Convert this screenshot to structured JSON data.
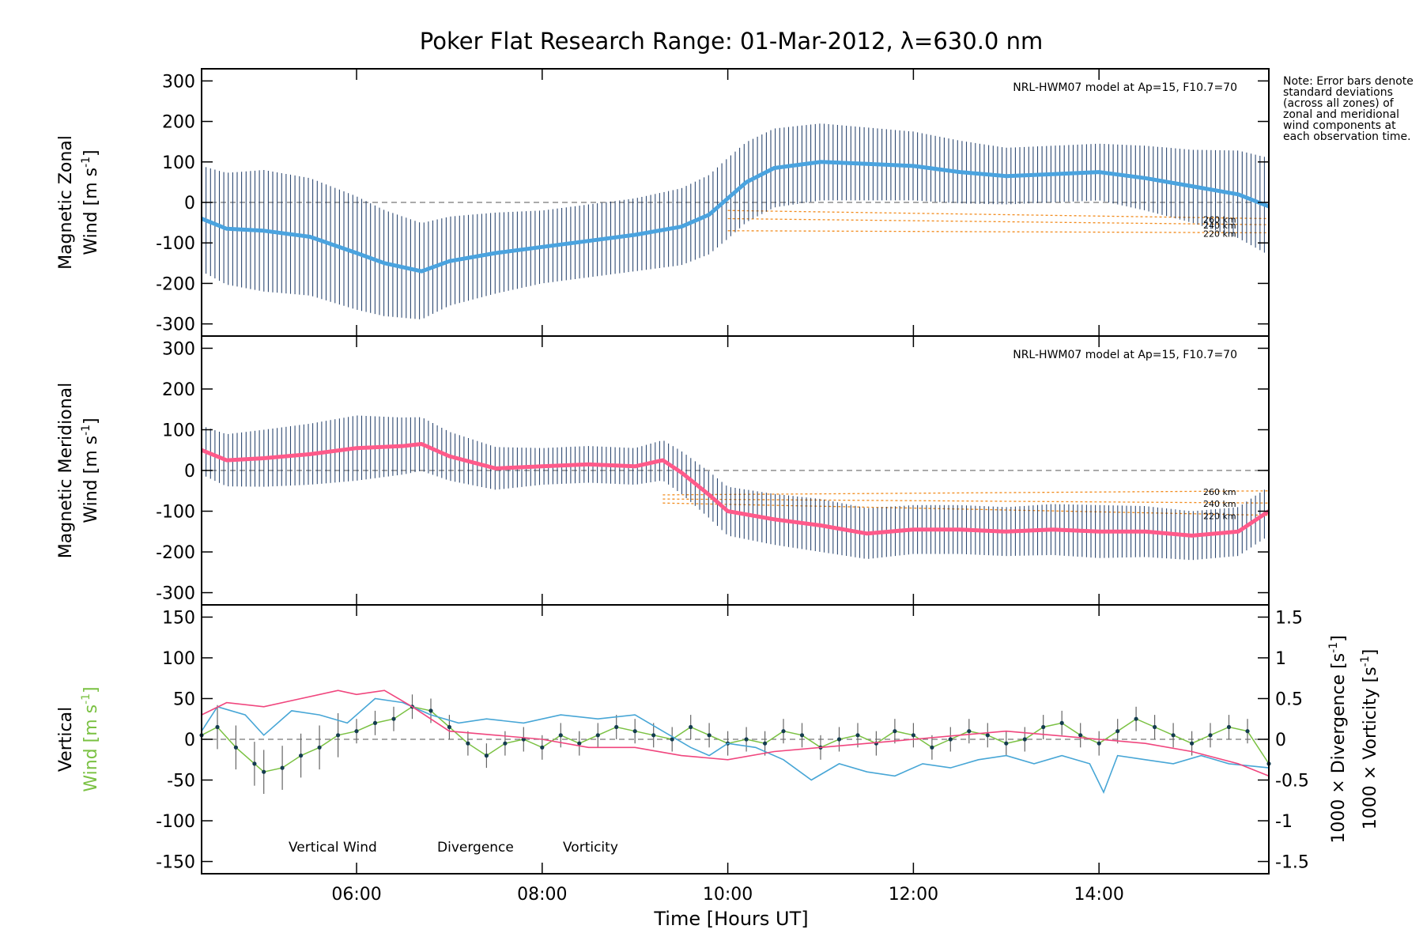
{
  "title": "Poker Flat Research Range: 01-Mar-2012, λ=630.0 nm",
  "note": "Note: Error bars denote standard deviations (across all zones) of zonal and meridional wind components at each observation time.",
  "colors": {
    "zonal_mean": "#4aa3df",
    "meridional_mean": "#ff5a8a",
    "error_bar": "#0a2a5a",
    "model": "#f28c1e",
    "outlier": "#b4a9e0",
    "vertical": "#7ac142",
    "divergence": "#47a6d6",
    "vorticity": "#f0467e",
    "vertical_dot": "#143c4f"
  },
  "xaxis": {
    "label": "Time [Hours UT]",
    "range_hours": [
      4.33,
      15.83
    ],
    "ticks": [
      {
        "h": 6,
        "label": "06:00"
      },
      {
        "h": 8,
        "label": "08:00"
      },
      {
        "h": 10,
        "label": "10:00"
      },
      {
        "h": 12,
        "label": "12:00"
      },
      {
        "h": 14,
        "label": "14:00"
      }
    ]
  },
  "chart_data": [
    {
      "type": "line",
      "id": "zonal",
      "ylabel_line1": "Magnetic Zonal",
      "ylabel_line2": "Wind [m s",
      "ylabel_sup": "-1",
      "ylabel_close": "]",
      "ylim": [
        -330,
        330
      ],
      "yticks": [
        300,
        200,
        100,
        0,
        -100,
        -200,
        -300
      ],
      "model_label": "NRL-HWM07 model at Ap=15, F10.7=70",
      "model_altitudes": [
        "260 km",
        "240 km",
        "220 km"
      ],
      "mean_wind": {
        "x": [
          4.33,
          4.6,
          5.0,
          5.5,
          6.0,
          6.3,
          6.7,
          7.0,
          7.5,
          8.0,
          8.5,
          9.0,
          9.5,
          9.8,
          10.0,
          10.2,
          10.5,
          11.0,
          11.5,
          12.0,
          12.5,
          13.0,
          13.5,
          14.0,
          14.5,
          15.0,
          15.5,
          15.83
        ],
        "y": [
          -40,
          -65,
          -70,
          -85,
          -125,
          -150,
          -170,
          -145,
          -125,
          -110,
          -95,
          -80,
          -60,
          -30,
          10,
          50,
          85,
          100,
          95,
          90,
          75,
          65,
          70,
          75,
          60,
          40,
          20,
          -10
        ]
      },
      "std_dev": {
        "x": [
          4.33,
          5.0,
          6.0,
          7.0,
          8.0,
          9.0,
          10.0,
          11.0,
          12.0,
          13.0,
          14.0,
          15.0,
          15.83
        ],
        "y": [
          130,
          150,
          140,
          110,
          90,
          90,
          100,
          95,
          85,
          70,
          70,
          90,
          120
        ]
      },
      "model": [
        {
          "name": "260 km",
          "x": [
            10.0,
            15.83
          ],
          "y": [
            -20,
            -40
          ]
        },
        {
          "name": "240 km",
          "x": [
            10.0,
            15.83
          ],
          "y": [
            -40,
            -55
          ]
        },
        {
          "name": "220 km",
          "x": [
            10.0,
            15.83
          ],
          "y": [
            -70,
            -75
          ]
        }
      ]
    },
    {
      "type": "line",
      "id": "meridional",
      "ylabel_line1": "Magnetic Meridional",
      "ylabel_line2": "Wind [m s",
      "ylabel_sup": "-1",
      "ylabel_close": "]",
      "ylim": [
        -330,
        330
      ],
      "yticks": [
        300,
        200,
        100,
        0,
        -100,
        -200,
        -300
      ],
      "model_label": "NRL-HWM07 model at Ap=15, F10.7=70",
      "model_altitudes": [
        "260 km",
        "240 km",
        "220 km"
      ],
      "mean_wind": {
        "x": [
          4.33,
          4.6,
          5.0,
          5.5,
          6.0,
          6.5,
          6.7,
          7.0,
          7.5,
          8.0,
          8.5,
          9.0,
          9.3,
          9.5,
          9.8,
          10.0,
          10.5,
          11.0,
          11.5,
          12.0,
          12.5,
          13.0,
          13.5,
          14.0,
          14.5,
          15.0,
          15.5,
          15.83
        ],
        "y": [
          50,
          25,
          30,
          40,
          55,
          60,
          65,
          35,
          5,
          10,
          15,
          10,
          25,
          -5,
          -60,
          -100,
          -120,
          -135,
          -155,
          -145,
          -145,
          -150,
          -145,
          -150,
          -150,
          -160,
          -150,
          -100
        ]
      },
      "std_dev": {
        "x": [
          4.33,
          5.0,
          6.0,
          7.0,
          8.0,
          9.0,
          10.0,
          11.0,
          12.0,
          13.0,
          14.0,
          15.0,
          15.83
        ],
        "y": [
          60,
          70,
          80,
          60,
          45,
          45,
          60,
          65,
          60,
          60,
          65,
          60,
          60
        ]
      },
      "model": [
        {
          "name": "260 km",
          "x": [
            9.3,
            15.83
          ],
          "y": [
            -60,
            -50
          ]
        },
        {
          "name": "240 km",
          "x": [
            9.3,
            15.83
          ],
          "y": [
            -70,
            -80
          ]
        },
        {
          "name": "220 km",
          "x": [
            9.3,
            15.83
          ],
          "y": [
            -80,
            -110
          ]
        }
      ]
    },
    {
      "type": "line",
      "id": "vertical",
      "ylabel_line1": "Vertical",
      "ylabel_line2": "Wind [m s",
      "ylabel_sup": "-1",
      "ylabel_close": "]",
      "ylim": [
        -165,
        165
      ],
      "yticks": [
        150,
        100,
        50,
        0,
        -50,
        -100,
        -150
      ],
      "y2label_div": "1000 × Divergence [s",
      "y2label_vor": "1000 × Vorticity [s",
      "y2_sup": "-1",
      "y2_close": "]",
      "y2lim": [
        -1.65,
        1.65
      ],
      "y2ticks": [
        1.5,
        1.0,
        0.5,
        0.0,
        -0.5,
        -1.0,
        -1.5
      ],
      "legend": [
        "Vertical Wind",
        "Divergence",
        "Vorticity"
      ],
      "series": [
        {
          "name": "Vertical Wind",
          "x": [
            4.33,
            4.5,
            4.7,
            4.9,
            5.0,
            5.2,
            5.4,
            5.6,
            5.8,
            6.0,
            6.2,
            6.4,
            6.6,
            6.8,
            7.0,
            7.2,
            7.4,
            7.6,
            7.8,
            8.0,
            8.2,
            8.4,
            8.6,
            8.8,
            9.0,
            9.2,
            9.4,
            9.6,
            9.8,
            10.0,
            10.2,
            10.4,
            10.6,
            10.8,
            11.0,
            11.2,
            11.4,
            11.6,
            11.8,
            12.0,
            12.2,
            12.4,
            12.6,
            12.8,
            13.0,
            13.2,
            13.4,
            13.6,
            13.8,
            14.0,
            14.2,
            14.4,
            14.6,
            14.8,
            15.0,
            15.2,
            15.4,
            15.6,
            15.83
          ],
          "y": [
            5,
            15,
            -10,
            -30,
            -40,
            -35,
            -20,
            -10,
            5,
            10,
            20,
            25,
            40,
            35,
            15,
            -5,
            -20,
            -5,
            0,
            -10,
            5,
            -5,
            5,
            15,
            10,
            5,
            0,
            15,
            5,
            -5,
            0,
            -5,
            10,
            5,
            -10,
            0,
            5,
            -5,
            10,
            5,
            -10,
            0,
            10,
            5,
            -5,
            0,
            15,
            20,
            5,
            -5,
            10,
            25,
            15,
            5,
            -5,
            5,
            15,
            10,
            -30
          ]
        },
        {
          "name": "Divergence",
          "x": [
            4.33,
            4.5,
            4.8,
            5.0,
            5.3,
            5.6,
            5.9,
            6.2,
            6.5,
            6.8,
            7.1,
            7.4,
            7.8,
            8.2,
            8.6,
            9.0,
            9.3,
            9.6,
            9.8,
            10.0,
            10.3,
            10.6,
            10.9,
            11.2,
            11.5,
            11.8,
            12.1,
            12.4,
            12.7,
            13.0,
            13.3,
            13.6,
            13.9,
            14.05,
            14.1,
            14.2,
            14.5,
            14.8,
            15.1,
            15.4,
            15.83
          ],
          "y": [
            0.1,
            0.4,
            0.3,
            0.05,
            0.35,
            0.3,
            0.2,
            0.5,
            0.45,
            0.3,
            0.2,
            0.25,
            0.2,
            0.3,
            0.25,
            0.3,
            0.1,
            -0.1,
            -0.2,
            -0.05,
            -0.1,
            -0.25,
            -0.5,
            -0.3,
            -0.4,
            -0.45,
            -0.3,
            -0.35,
            -0.25,
            -0.2,
            -0.3,
            -0.2,
            -0.3,
            -0.65,
            -0.5,
            -0.2,
            -0.25,
            -0.3,
            -0.2,
            -0.3,
            -0.35
          ]
        },
        {
          "name": "Vorticity",
          "x": [
            4.33,
            4.6,
            5.0,
            5.4,
            5.8,
            6.0,
            6.3,
            6.6,
            7.0,
            7.5,
            8.0,
            8.5,
            9.0,
            9.5,
            10.0,
            10.5,
            11.0,
            11.5,
            12.0,
            12.5,
            13.0,
            13.5,
            14.0,
            14.5,
            15.0,
            15.5,
            15.83
          ],
          "y": [
            0.3,
            0.45,
            0.4,
            0.5,
            0.6,
            0.55,
            0.6,
            0.4,
            0.1,
            0.05,
            0.0,
            -0.1,
            -0.1,
            -0.2,
            -0.25,
            -0.15,
            -0.1,
            -0.05,
            0.0,
            0.05,
            0.1,
            0.05,
            0.0,
            -0.05,
            -0.15,
            -0.3,
            -0.45
          ]
        }
      ]
    }
  ]
}
